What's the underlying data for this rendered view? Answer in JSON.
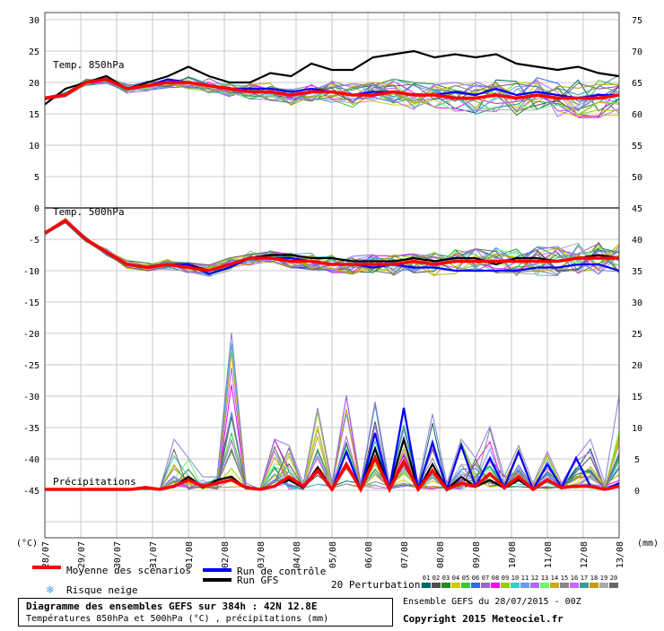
{
  "chart_data": {
    "type": "line",
    "title": "Diagramme des ensembles GEFS sur 384h : 42N 12.8E",
    "subtitle": "Températures 850hPa et 500hPa (°C) , précipitations (mm)",
    "run_info": "Ensemble GEFS du 28/07/2015 - 00Z",
    "copyright": "Copyright 2015 Meteociel.fr",
    "left_axis_label": "(°C)",
    "right_axis_label": "(mm)",
    "left_ticks": [
      "30",
      "25",
      "20",
      "15",
      "10",
      "5",
      "0",
      "-5",
      "-10",
      "-15",
      "-20",
      "-25",
      "-30",
      "-35",
      "-40",
      "-45"
    ],
    "right_ticks_upper": [
      "75",
      "70",
      "65",
      "60",
      "55",
      "50",
      "45"
    ],
    "right_ticks_lower": [
      "40",
      "35",
      "30",
      "25",
      "20",
      "15",
      "10",
      "5",
      "0"
    ],
    "x_dates": [
      "28/07",
      "29/07",
      "30/07",
      "31/07",
      "01/08",
      "02/08",
      "03/08",
      "04/08",
      "05/08",
      "06/08",
      "07/08",
      "08/08",
      "09/08",
      "10/08",
      "11/08",
      "12/08",
      "13/08"
    ],
    "panel_labels": {
      "t850": "Temp. 850hPa",
      "t500": "Temp. 500hPa",
      "precip": "Précipitations"
    },
    "legend": {
      "mean": "Moyenne des scénarios",
      "control": "Run de contrôle",
      "gfs": "Run GFS",
      "snow": "Risque neige",
      "perturbations": "20 Perturbations",
      "pert_numbers": [
        "01",
        "02",
        "03",
        "04",
        "05",
        "06",
        "07",
        "08",
        "09",
        "10",
        "11",
        "12",
        "13",
        "14",
        "15",
        "16",
        "17",
        "18",
        "19",
        "20"
      ]
    },
    "colors": {
      "mean": "#ff0000",
      "control": "#0000ff",
      "gfs": "#000000",
      "snow": "#4aa3df",
      "perts": [
        "#006666",
        "#4d4d4d",
        "#228b22",
        "#cccc00",
        "#33cc33",
        "#3366ff",
        "#9966cc",
        "#ff00ff",
        "#99cc00",
        "#33cccc",
        "#6699ff",
        "#aa66ff",
        "#66ff66",
        "#ccaa00",
        "#888888",
        "#cc66ff",
        "#339999",
        "#cc9900",
        "#aaaaaa",
        "#666666"
      ]
    },
    "series_t850": {
      "mean": [
        17.5,
        18,
        20,
        20.5,
        19,
        19.5,
        20,
        20,
        19.5,
        19,
        18.5,
        18.5,
        18,
        18.5,
        18.5,
        18,
        18,
        18.5,
        18,
        18,
        17.5,
        17.5,
        18,
        17.5,
        18,
        17.5,
        17.5,
        17.5,
        18
      ],
      "control": [
        17.5,
        18,
        20,
        20.5,
        19,
        19.5,
        20.5,
        20,
        19.5,
        19,
        19,
        19,
        18.5,
        19,
        18.5,
        18,
        18.5,
        18.5,
        18,
        18,
        18.5,
        18,
        19,
        18,
        18.5,
        18,
        17.5,
        18,
        18
      ],
      "gfs": [
        16.5,
        19,
        20,
        21,
        19,
        20,
        21,
        22.5,
        21,
        20,
        20,
        21.5,
        21,
        23,
        22,
        22,
        24,
        24.5,
        25,
        24,
        24.5,
        24,
        24.5,
        23,
        22.5,
        22,
        22.5,
        21.5,
        21
      ]
    },
    "series_t500": {
      "mean": [
        -4,
        -2,
        -5,
        -7,
        -9,
        -9.5,
        -9,
        -9.5,
        -10,
        -9,
        -8,
        -8,
        -8.5,
        -8.5,
        -9,
        -9,
        -9,
        -9,
        -8.5,
        -9,
        -8.5,
        -8.5,
        -8.5,
        -8.5,
        -8.5,
        -8.5,
        -8,
        -8,
        -8
      ],
      "control": [
        -4,
        -2,
        -5,
        -7,
        -9,
        -9.5,
        -9,
        -9,
        -10.5,
        -9.5,
        -8,
        -8,
        -8,
        -8.5,
        -9,
        -9,
        -9.5,
        -9,
        -9.5,
        -9.5,
        -10,
        -10,
        -10,
        -10,
        -9.5,
        -9.5,
        -9,
        -9,
        -10
      ],
      "gfs": [
        -4,
        -2,
        -5,
        -7,
        -9,
        -9.5,
        -9,
        -9,
        -10,
        -9,
        -8,
        -7.5,
        -7.5,
        -8,
        -8,
        -8.5,
        -8.5,
        -8.5,
        -8,
        -8.5,
        -8,
        -8,
        -9,
        -8,
        -8,
        -8.5,
        -8,
        -7.5,
        -8
      ]
    },
    "series_precip": {
      "mean": [
        0,
        0,
        0,
        0,
        0,
        0,
        0,
        0.3,
        0,
        0.5,
        1.5,
        0.5,
        1,
        1.5,
        0.3,
        0,
        0.5,
        2,
        0.5,
        3,
        0,
        4,
        0,
        5,
        0,
        4.5,
        0,
        3,
        0,
        1,
        0.5,
        2.5,
        0.3,
        2,
        0,
        1.5,
        0.3,
        0.5,
        0.5,
        0,
        0.5
      ],
      "control": [
        0,
        0,
        0,
        0,
        0,
        0,
        0,
        0.3,
        0,
        0.5,
        1.5,
        0.5,
        1,
        1.5,
        0.3,
        0,
        0.5,
        2,
        0.5,
        3,
        0,
        6,
        0,
        9,
        0,
        13,
        0,
        7.5,
        0,
        7,
        0.5,
        5,
        0.3,
        6,
        0,
        4,
        0.3,
        5,
        0.5,
        0,
        1
      ],
      "gfs": [
        0,
        0,
        0,
        0,
        0,
        0,
        0,
        0.2,
        0,
        0.4,
        2,
        0.3,
        1.5,
        2,
        0.2,
        0,
        0.6,
        1.5,
        0.3,
        3.5,
        0,
        4,
        0,
        6.5,
        0,
        8,
        0,
        4,
        0,
        2,
        0.4,
        1.5,
        0.2,
        1.5,
        0,
        1.5,
        0.2,
        0.5,
        0.4,
        0,
        0.5
      ],
      "max_spike": [
        0,
        0,
        0,
        0,
        0,
        0,
        0,
        0.5,
        0,
        8,
        5,
        2,
        2,
        25,
        1,
        0,
        8,
        7,
        1,
        13,
        1,
        15,
        1,
        14,
        1,
        13,
        1,
        12,
        1,
        8,
        5,
        10,
        2,
        7,
        1,
        6,
        1,
        5,
        8,
        1,
        15
      ]
    }
  }
}
